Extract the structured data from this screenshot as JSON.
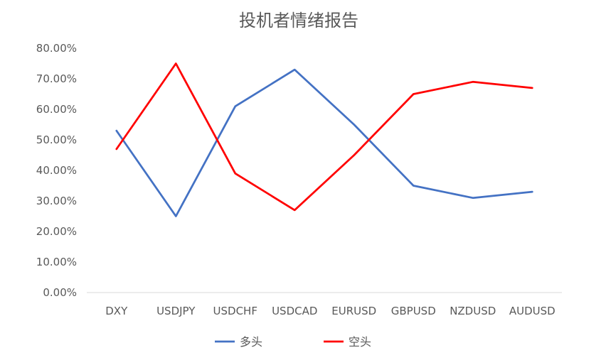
{
  "chart_data": {
    "type": "line",
    "title": "投机者情绪报告",
    "categories": [
      "DXY",
      "USDJPY",
      "USDCHF",
      "USDCAD",
      "EURUSD",
      "GBPUSD",
      "NZDUSD",
      "AUDUSD"
    ],
    "y_ticks": [
      "0.00%",
      "10.00%",
      "20.00%",
      "30.00%",
      "40.00%",
      "50.00%",
      "60.00%",
      "70.00%",
      "80.00%"
    ],
    "ylim": [
      0,
      80
    ],
    "grid": false,
    "legend_position": "bottom",
    "series": [
      {
        "name": "多头",
        "color": "#4472C4",
        "values": [
          53,
          25,
          61,
          73,
          55,
          35,
          31,
          33
        ]
      },
      {
        "name": "空头",
        "color": "#FF0000",
        "values": [
          47,
          75,
          39,
          27,
          45,
          65,
          69,
          67
        ]
      }
    ]
  }
}
